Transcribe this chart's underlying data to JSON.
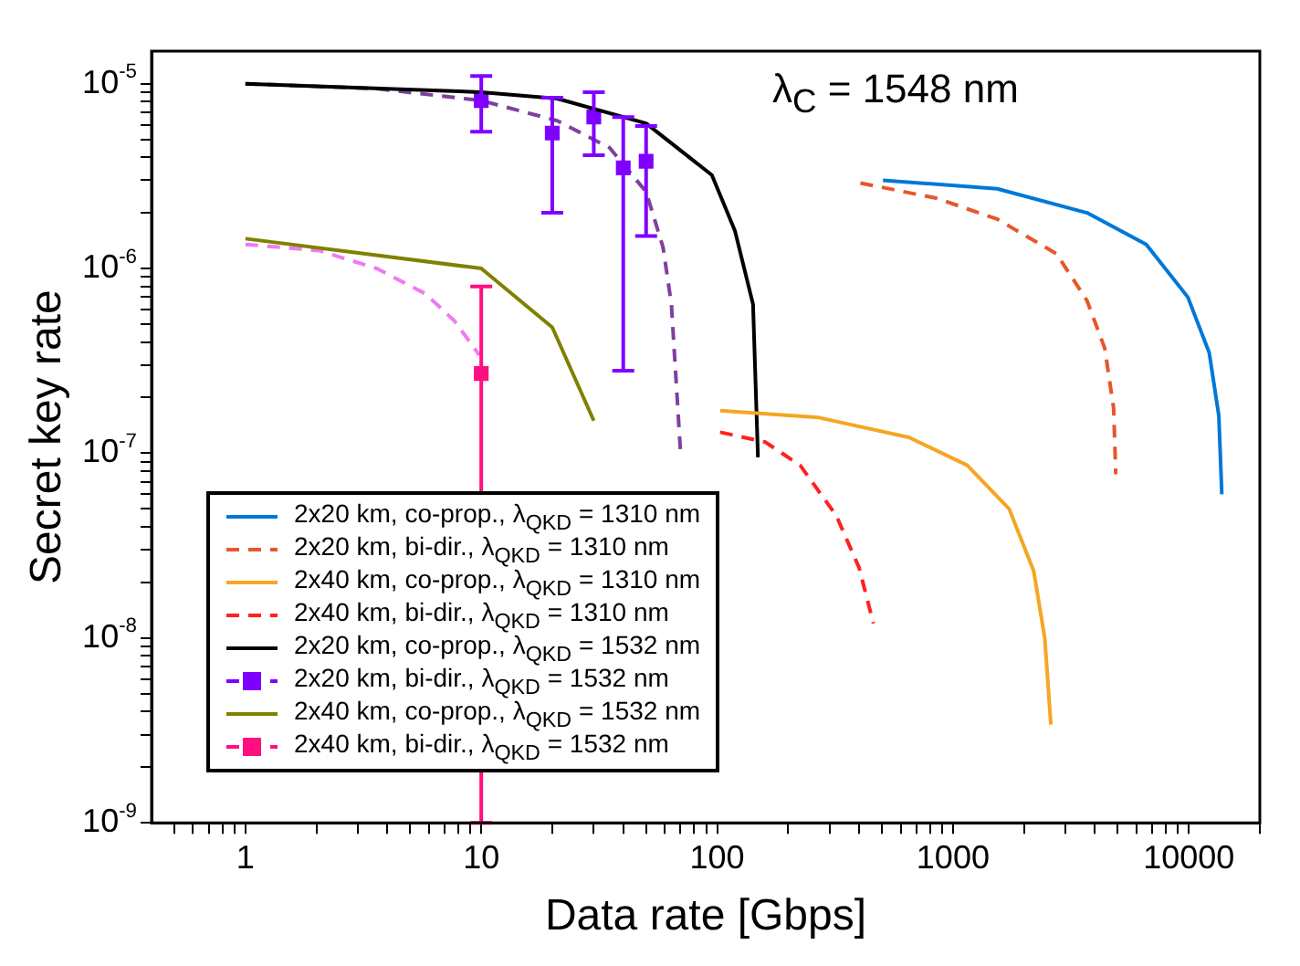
{
  "chart_data": {
    "type": "line",
    "xlabel": "Data rate [Gbps]",
    "ylabel": "Secret key rate",
    "annotations": [
      "λ$_{C}$ = 1548 nm"
    ],
    "log": "xy",
    "grid": false,
    "legend": "bottom left",
    "xlim": [
      0.4,
      20000
    ],
    "ylim": [
      1e-09,
      1.5e-05
    ],
    "xticks": [
      {
        "value": 0.5,
        "label": null
      },
      {
        "value": 0.6,
        "label": null
      },
      {
        "value": 0.7,
        "label": null
      },
      {
        "value": 0.8,
        "label": null
      },
      {
        "value": 0.9,
        "label": null
      },
      1,
      {
        "value": 2,
        "label": null
      },
      {
        "value": 3,
        "label": null
      },
      {
        "value": 4,
        "label": null
      },
      {
        "value": 5,
        "label": null
      },
      {
        "value": 6,
        "label": null
      },
      {
        "value": 7,
        "label": null
      },
      {
        "value": 8,
        "label": null
      },
      {
        "value": 9,
        "label": null
      },
      10,
      {
        "value": 20,
        "label": null
      },
      {
        "value": 30,
        "label": null
      },
      {
        "value": 40,
        "label": null
      },
      {
        "value": 50,
        "label": null
      },
      {
        "value": 60,
        "label": null
      },
      {
        "value": 70,
        "label": null
      },
      {
        "value": 80,
        "label": null
      },
      {
        "value": 90,
        "label": null
      },
      100,
      {
        "value": 200,
        "label": null
      },
      {
        "value": 300,
        "label": null
      },
      {
        "value": 400,
        "label": null
      },
      {
        "value": 500,
        "label": null
      },
      {
        "value": 600,
        "label": null
      },
      {
        "value": 700,
        "label": null
      },
      {
        "value": 800,
        "label": null
      },
      {
        "value": 900,
        "label": null
      },
      1000,
      {
        "value": 2000,
        "label": null
      },
      {
        "value": 3000,
        "label": null
      },
      {
        "value": 4000,
        "label": null
      },
      {
        "value": 5000,
        "label": null
      },
      {
        "value": 6000,
        "label": null
      },
      {
        "value": 7000,
        "label": null
      },
      {
        "value": 8000,
        "label": null
      },
      {
        "value": 9000,
        "label": null
      },
      10000,
      {
        "value": 20000,
        "label": null
      }
    ],
    "yticks": [
      {
        "value": 1e-09,
        "label": "10$^{-9}$"
      },
      {
        "value": 2e-09,
        "label": null
      },
      {
        "value": 3e-09,
        "label": null
      },
      {
        "value": 4e-09,
        "label": null
      },
      {
        "value": 5e-09,
        "label": null
      },
      {
        "value": 6e-09,
        "label": null
      },
      {
        "value": 7e-09,
        "label": null
      },
      {
        "value": 8e-09,
        "label": null
      },
      {
        "value": 9e-09,
        "label": null
      },
      {
        "value": 1e-08,
        "label": "10$^{-8}$"
      },
      {
        "value": 2e-08,
        "label": null
      },
      {
        "value": 3e-08,
        "label": null
      },
      {
        "value": 4e-08,
        "label": null
      },
      {
        "value": 5e-08,
        "label": null
      },
      {
        "value": 6e-08,
        "label": null
      },
      {
        "value": 7e-08,
        "label": null
      },
      {
        "value": 8e-08,
        "label": null
      },
      {
        "value": 9e-08,
        "label": null
      },
      {
        "value": 1e-07,
        "label": "10$^{-7}$"
      },
      {
        "value": 2e-07,
        "label": null
      },
      {
        "value": 3e-07,
        "label": null
      },
      {
        "value": 4e-07,
        "label": null
      },
      {
        "value": 5e-07,
        "label": null
      },
      {
        "value": 6e-07,
        "label": null
      },
      {
        "value": 7e-07,
        "label": null
      },
      {
        "value": 8e-07,
        "label": null
      },
      {
        "value": 9e-07,
        "label": null
      },
      {
        "value": 1e-06,
        "label": "10$^{-6}$"
      },
      {
        "value": 2e-06,
        "label": null
      },
      {
        "value": 3e-06,
        "label": null
      },
      {
        "value": 4e-06,
        "label": null
      },
      {
        "value": 5e-06,
        "label": null
      },
      {
        "value": 6e-06,
        "label": null
      },
      {
        "value": 7e-06,
        "label": null
      },
      {
        "value": 8e-06,
        "label": null
      },
      {
        "value": 9e-06,
        "label": null
      },
      {
        "value": 1e-05,
        "label": "10$^{-5}$"
      }
    ],
    "series": [
      {
        "name": "2x20 km, co-prop., λ$_{QKD}$ = 1310 nm",
        "color": "#0078d7",
        "line_style": "solid",
        "marker": "none",
        "x": [
          505,
          1540,
          3700,
          6600,
          9900,
          12200,
          13400,
          13800
        ],
        "values": [
          3e-06,
          2.7e-06,
          2e-06,
          1.35e-06,
          7e-07,
          3.5e-07,
          1.6e-07,
          6e-08
        ]
      },
      {
        "name": "2x20 km, bi-dir., λ$_{QKD}$ = 1310 nm",
        "color": "#e8562a",
        "line_style": "dashed",
        "marker": "none",
        "x": [
          405,
          850,
          1540,
          2750,
          3700,
          4400,
          4800,
          4900
        ],
        "values": [
          2.9e-06,
          2.4e-06,
          1.85e-06,
          1.2e-06,
          6.7e-07,
          3.7e-07,
          1.75e-07,
          7.7e-08
        ]
      },
      {
        "name": "2x40 km, co-prop., λ$_{QKD}$ = 1310 nm",
        "color": "#f5a623",
        "line_style": "solid",
        "marker": "none",
        "x": [
          103,
          270,
          650,
          1150,
          1730,
          2200,
          2450,
          2600
        ],
        "values": [
          1.7e-07,
          1.56e-07,
          1.22e-07,
          8.6e-08,
          5e-08,
          2.3e-08,
          1e-08,
          3.4e-09
        ]
      },
      {
        "name": "2x40 km, bi-dir., λ$_{QKD}$ = 1310 nm",
        "color": "#ff2020",
        "line_style": "dashed",
        "marker": "none",
        "x": [
          103,
          160,
          225,
          320,
          400,
          460
        ],
        "values": [
          1.3e-07,
          1.15e-07,
          8.6e-08,
          4.6e-08,
          2.4e-08,
          1.2e-08
        ]
      },
      {
        "name": "2x20 km, co-prop., λ$_{QKD}$ = 1532 nm",
        "color": "#000000",
        "line_style": "solid",
        "marker": "none",
        "x": [
          1,
          10,
          21,
          50,
          95,
          119,
          142,
          149
        ],
        "values": [
          1e-05,
          9e-06,
          8.3e-06,
          6.1e-06,
          3.2e-06,
          1.6e-06,
          6.4e-07,
          9.5e-08
        ]
      },
      {
        "name": "2x20 km, bi-dir., λ$_{QKD}$ = 1532 nm",
        "type": "scatter",
        "color": "#8000ff",
        "marker": "square",
        "x": [
          10,
          20,
          30,
          40,
          50
        ],
        "values": [
          8.1e-06,
          5.4e-06,
          6.6e-06,
          3.5e-06,
          3.8e-06
        ],
        "errors": [
          [
            5.5e-06,
            1.1e-05
          ],
          [
            2e-06,
            8.4e-06
          ],
          [
            4.1e-06,
            9e-06
          ],
          [
            2.8e-07,
            6.6e-06
          ],
          [
            1.5e-06,
            5.9e-06
          ]
        ]
      },
      {
        "color": "#8040a0",
        "line_style": "dashed",
        "marker": "none",
        "x": [
          1,
          3.6,
          10,
          21,
          35,
          50,
          59,
          64,
          70
        ],
        "values": [
          1e-05,
          9.4e-06,
          8.1e-06,
          6.3e-06,
          4.5e-06,
          2.6e-06,
          1.3e-06,
          6.4e-07,
          1e-07
        ]
      },
      {
        "name": "2x40 km, co-prop., λ$_{QKD}$ = 1532 nm",
        "color": "#808000",
        "line_style": "solid",
        "marker": "none",
        "x": [
          1,
          10,
          20,
          30
        ],
        "values": [
          1.45e-06,
          1e-06,
          4.8e-07,
          1.5e-07
        ]
      },
      {
        "name": "2x40 km, bi-dir., λ$_{QKD}$ = 1532 nm",
        "type": "scatter",
        "color": "#ff0f80",
        "marker": "square",
        "x": [
          10
        ],
        "values": [
          2.7e-07
        ],
        "errors": [
          [
            1e-09,
            8e-07
          ]
        ]
      },
      {
        "color": "#f07af0",
        "line_style": "dashed",
        "marker": "none",
        "x": [
          1,
          2.05,
          3.6,
          5.8,
          7.7,
          9.8
        ],
        "values": [
          1.35e-06,
          1.25e-06,
          1e-06,
          7.3e-07,
          5.2e-07,
          3.4e-07
        ]
      }
    ]
  }
}
